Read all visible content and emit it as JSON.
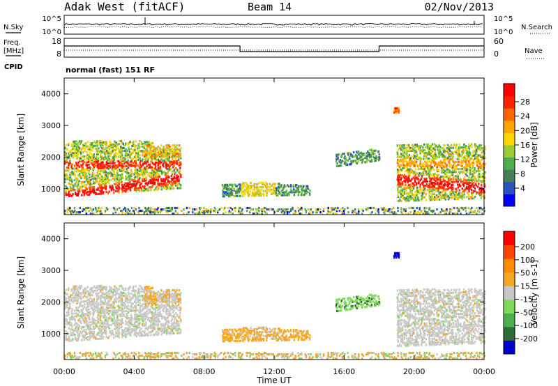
{
  "header": {
    "title": "Adak West (fitACF)",
    "beam": "Beam 14",
    "date": "02/Nov/2013"
  },
  "panels": {
    "nsky": {
      "label_left": "N.Sky",
      "label_right": "N.Search",
      "ticks_left": [
        "10^5",
        "10^0"
      ],
      "ticks_right": [
        "10^5",
        "10^0"
      ]
    },
    "freq": {
      "label_left1": "Freq.",
      "label_left2": "[MHz]",
      "label_left3": "CPID",
      "label_right": "Nave",
      "ticks_left": [
        "18",
        "8"
      ],
      "ticks_right": [
        "60",
        "0"
      ]
    },
    "cpid_text": "normal (fast) 151 RF"
  },
  "chart_data": [
    {
      "type": "heatmap",
      "name": "power",
      "ylabel": "Slant Range [km]",
      "yticks": [
        "4000",
        "3000",
        "2000",
        "1000"
      ],
      "colorbar_label": "Power [dB]",
      "colorbar_ticks": [
        "28",
        "24",
        "20",
        "16",
        "12",
        "8",
        "4"
      ],
      "colorbar_colors": [
        "#0000ff",
        "#2a52be",
        "#4a7c59",
        "#4cae4c",
        "#9acd32",
        "#ffd700",
        "#ffa500",
        "#ff6600",
        "#ff2200",
        "#ff0000"
      ]
    },
    {
      "type": "heatmap",
      "name": "velocity",
      "ylabel": "Slant Range [km]",
      "yticks": [
        "4000",
        "3000",
        "2000",
        "1000"
      ],
      "colorbar_label": "Velocity [m s-1]",
      "colorbar_ticks": [
        "200",
        "100",
        "50",
        "15",
        "-15",
        "-50",
        "-100",
        "-200"
      ],
      "colorbar_colors": [
        "#0000cd",
        "#2e6b3a",
        "#4caf50",
        "#7ed957",
        "#c8c8c8",
        "#f5a623",
        "#ff8c00",
        "#ff4500",
        "#ff0000"
      ]
    }
  ],
  "xaxis": {
    "ticks": [
      "00:00",
      "04:00",
      "08:00",
      "12:00",
      "16:00",
      "20:00",
      "00:00"
    ],
    "label": "Time UT"
  }
}
